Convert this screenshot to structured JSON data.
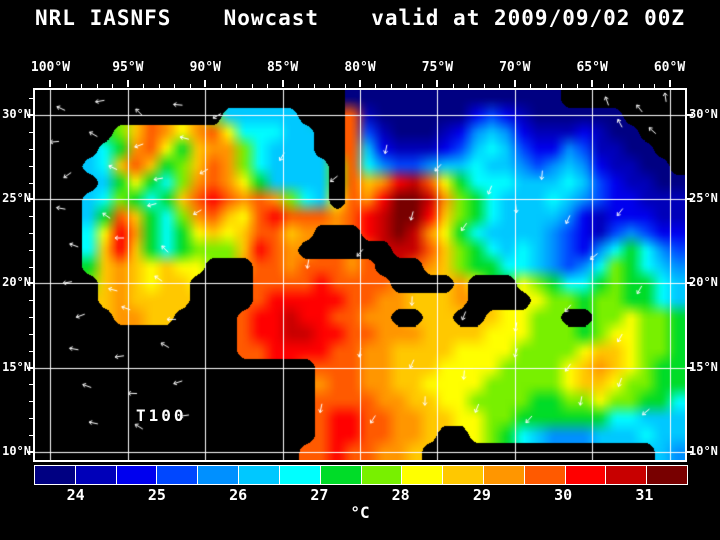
{
  "header": {
    "model": "NRL IASNFS",
    "product": "Nowcast",
    "valid_time": "valid at 2009/09/02 00Z"
  },
  "map": {
    "annotation": "T100",
    "grid_color": "#ffffff",
    "land_color": "#000000",
    "vector_color": "#ffffff",
    "lon_ticks": [
      {
        "lon": -100,
        "label": "100°W"
      },
      {
        "lon": -95,
        "label": "95°W"
      },
      {
        "lon": -90,
        "label": "90°W"
      },
      {
        "lon": -85,
        "label": "85°W"
      },
      {
        "lon": -80,
        "label": "80°W"
      },
      {
        "lon": -75,
        "label": "75°W"
      },
      {
        "lon": -70,
        "label": "70°W"
      },
      {
        "lon": -65,
        "label": "65°W"
      },
      {
        "lon": -60,
        "label": "60°W"
      }
    ],
    "lat_ticks": [
      {
        "lat": 30,
        "label": "30°N"
      },
      {
        "lat": 25,
        "label": "25°N"
      },
      {
        "lat": 20,
        "label": "20°N"
      },
      {
        "lat": 15,
        "label": "15°N"
      },
      {
        "lat": 10,
        "label": "10°N"
      }
    ]
  },
  "colorbar": {
    "min": 23.5,
    "max": 31.5,
    "step": 0.5,
    "unit": "°C",
    "colors": [
      "#000082",
      "#0000b9",
      "#0000ef",
      "#0047ff",
      "#0090ff",
      "#00c8ff",
      "#00ffff",
      "#00dc28",
      "#78f000",
      "#ffff00",
      "#ffc800",
      "#ff9600",
      "#ff5a00",
      "#ff0000",
      "#c80000",
      "#780000"
    ],
    "tick_labels": [
      "24",
      "25",
      "26",
      "27",
      "28",
      "29",
      "30",
      "31"
    ],
    "tick_values": [
      24,
      25,
      26,
      27,
      28,
      29,
      30,
      31
    ]
  },
  "chart_data": {
    "type": "heatmap",
    "title": "NRL IASNFS Nowcast valid at 2009/09/02 00Z",
    "field": "T100",
    "units": "°C",
    "lon_range": [
      -101,
      -59
    ],
    "lat_range": [
      9.5,
      31.5
    ],
    "ncols": 42,
    "nrows": 22,
    "values": [
      [
        null,
        null,
        null,
        null,
        null,
        null,
        null,
        null,
        null,
        null,
        null,
        null,
        null,
        null,
        null,
        null,
        null,
        null,
        null,
        null,
        23.6,
        23.6,
        23.6,
        23.6,
        23.6,
        23.6,
        23.6,
        23.6,
        23.6,
        23.6,
        23.6,
        23.6,
        23.6,
        23.6,
        null,
        null,
        null,
        null,
        null,
        null,
        null,
        null
      ],
      [
        null,
        null,
        null,
        null,
        null,
        null,
        null,
        null,
        null,
        null,
        null,
        null,
        26.3,
        26.3,
        26.3,
        26.3,
        26.3,
        null,
        null,
        null,
        29.6,
        24.3,
        23.8,
        23.8,
        23.8,
        23.8,
        23.8,
        23.8,
        24.8,
        25.3,
        24.8,
        24.2,
        23.9,
        23.9,
        23.9,
        23.9,
        23.9,
        23.9,
        null,
        null,
        null,
        null
      ],
      [
        null,
        null,
        null,
        null,
        null,
        27.5,
        28.5,
        29.5,
        29.0,
        28.0,
        29.0,
        29.5,
        28.0,
        26.5,
        26.5,
        26.5,
        26.3,
        26.0,
        null,
        null,
        29.8,
        25.0,
        24.0,
        23.8,
        23.8,
        23.8,
        24.0,
        24.5,
        25.5,
        26.0,
        25.5,
        24.5,
        24.0,
        24.0,
        24.3,
        24.5,
        24.0,
        23.8,
        23.8,
        null,
        null,
        null
      ],
      [
        null,
        null,
        null,
        null,
        26.5,
        27.0,
        29.3,
        29.8,
        28.0,
        27.0,
        28.5,
        29.3,
        29.0,
        27.5,
        26.5,
        26.3,
        26.3,
        26.0,
        null,
        null,
        29.8,
        26.0,
        24.5,
        24.0,
        24.0,
        24.2,
        24.5,
        25.0,
        26.2,
        26.5,
        26.0,
        25.0,
        24.5,
        24.8,
        25.5,
        25.0,
        24.3,
        24.0,
        23.8,
        23.7,
        null,
        null
      ],
      [
        null,
        null,
        null,
        26.0,
        26.5,
        28.8,
        29.5,
        28.5,
        27.0,
        27.5,
        28.5,
        29.5,
        29.0,
        27.5,
        26.5,
        26.3,
        26.2,
        26.0,
        26.0,
        null,
        29.5,
        26.5,
        25.5,
        25.0,
        25.0,
        25.5,
        26.0,
        26.3,
        26.5,
        26.3,
        26.0,
        25.5,
        25.0,
        25.5,
        26.0,
        25.5,
        24.8,
        24.3,
        24.0,
        23.9,
        23.8,
        null
      ],
      [
        null,
        null,
        null,
        null,
        26.3,
        27.0,
        28.0,
        27.0,
        26.5,
        27.5,
        29.3,
        29.8,
        29.3,
        28.0,
        27.0,
        26.3,
        26.2,
        26.2,
        26.0,
        null,
        29.5,
        28.5,
        29.0,
        30.0,
        30.5,
        29.5,
        28.0,
        27.0,
        26.5,
        26.5,
        26.5,
        26.0,
        26.0,
        26.3,
        26.5,
        26.0,
        25.0,
        24.5,
        24.2,
        24.0,
        23.9,
        23.8
      ],
      [
        null,
        null,
        null,
        26.0,
        26.5,
        27.5,
        27.0,
        26.5,
        27.0,
        28.5,
        29.8,
        30.0,
        29.5,
        29.0,
        29.5,
        29.0,
        27.5,
        26.5,
        26.3,
        null,
        29.5,
        29.0,
        30.3,
        31.0,
        31.2,
        30.5,
        29.0,
        27.5,
        27.0,
        26.5,
        26.3,
        26.0,
        26.3,
        26.5,
        26.3,
        25.5,
        25.0,
        24.5,
        24.5,
        24.3,
        24.0,
        24.0
      ],
      [
        null,
        null,
        null,
        26.3,
        27.0,
        29.5,
        28.5,
        27.0,
        26.8,
        27.5,
        29.0,
        29.5,
        28.5,
        28.0,
        29.5,
        30.0,
        29.5,
        29.8,
        29.5,
        29.0,
        29.5,
        30.0,
        30.8,
        31.3,
        31.0,
        30.0,
        28.5,
        27.5,
        27.0,
        26.5,
        26.0,
        26.0,
        26.2,
        26.0,
        25.5,
        24.5,
        24.3,
        24.5,
        24.8,
        24.5,
        24.3,
        24.2
      ],
      [
        null,
        null,
        null,
        26.5,
        28.0,
        30.3,
        29.0,
        27.0,
        26.8,
        27.0,
        28.0,
        28.5,
        28.0,
        28.5,
        29.8,
        29.5,
        28.5,
        29.0,
        null,
        null,
        null,
        30.0,
        30.5,
        31.0,
        30.5,
        29.0,
        28.0,
        27.0,
        26.5,
        26.3,
        26.0,
        26.2,
        26.0,
        25.5,
        25.0,
        24.5,
        24.3,
        25.0,
        25.5,
        25.0,
        24.8,
        24.5
      ],
      [
        null,
        null,
        null,
        26.5,
        28.5,
        30.0,
        28.5,
        27.0,
        26.8,
        27.0,
        27.5,
        27.5,
        27.8,
        28.5,
        30.0,
        29.8,
        29.0,
        null,
        null,
        null,
        null,
        null,
        null,
        30.5,
        30.8,
        29.5,
        28.5,
        27.5,
        27.0,
        26.5,
        26.3,
        26.5,
        26.3,
        25.5,
        25.0,
        24.8,
        25.5,
        26.5,
        27.0,
        26.5,
        25.5,
        25.0
      ],
      [
        null,
        null,
        null,
        27.0,
        28.5,
        29.0,
        28.5,
        28.3,
        28.5,
        28.0,
        28.0,
        null,
        null,
        null,
        29.8,
        29.5,
        29.3,
        29.5,
        29.8,
        29.5,
        29.3,
        29.5,
        null,
        null,
        null,
        29.0,
        28.5,
        27.5,
        27.3,
        27.0,
        26.5,
        26.5,
        26.0,
        25.5,
        25.3,
        25.5,
        26.5,
        27.5,
        27.0,
        26.5,
        26.0,
        25.5
      ],
      [
        null,
        null,
        null,
        null,
        28.5,
        29.0,
        28.5,
        28.3,
        28.5,
        28.5,
        null,
        null,
        null,
        null,
        29.5,
        29.8,
        29.5,
        29.8,
        30.0,
        29.8,
        29.5,
        29.8,
        29.5,
        null,
        null,
        null,
        null,
        29.0,
        null,
        null,
        null,
        28.0,
        27.5,
        27.0,
        26.5,
        26.5,
        27.0,
        27.5,
        27.3,
        27.0,
        26.5,
        26.0
      ],
      [
        null,
        null,
        null,
        null,
        28.8,
        29.3,
        28.8,
        28.5,
        28.5,
        28.5,
        null,
        null,
        null,
        null,
        29.8,
        30.0,
        30.0,
        30.3,
        30.0,
        30.0,
        29.8,
        29.5,
        29.3,
        29.0,
        28.5,
        28.5,
        28.8,
        29.0,
        null,
        null,
        null,
        null,
        28.0,
        27.5,
        27.5,
        27.3,
        27.5,
        27.5,
        27.3,
        27.0,
        26.5,
        26.3
      ],
      [
        null,
        null,
        null,
        null,
        null,
        29.0,
        29.0,
        28.8,
        28.8,
        null,
        null,
        null,
        null,
        29.8,
        30.0,
        30.3,
        30.5,
        30.3,
        30.0,
        29.8,
        29.5,
        29.3,
        29.0,
        null,
        null,
        28.8,
        28.5,
        null,
        null,
        28.5,
        28.3,
        28.0,
        27.8,
        27.5,
        null,
        null,
        27.5,
        27.8,
        28.0,
        27.8,
        27.5,
        27.3
      ],
      [
        null,
        null,
        null,
        null,
        null,
        null,
        null,
        null,
        null,
        null,
        null,
        null,
        null,
        29.8,
        30.0,
        30.3,
        30.5,
        30.5,
        30.3,
        30.0,
        29.8,
        29.5,
        29.3,
        29.0,
        29.0,
        28.8,
        28.5,
        28.5,
        28.5,
        28.3,
        28.0,
        28.0,
        27.8,
        27.5,
        27.5,
        27.3,
        27.5,
        28.0,
        28.0,
        27.8,
        27.5,
        27.3
      ],
      [
        null,
        null,
        null,
        null,
        null,
        null,
        null,
        null,
        null,
        null,
        null,
        null,
        null,
        29.5,
        29.8,
        30.0,
        30.3,
        30.3,
        30.0,
        29.8,
        29.5,
        29.3,
        29.0,
        28.8,
        28.8,
        28.5,
        28.5,
        28.3,
        28.3,
        28.0,
        28.0,
        27.8,
        27.5,
        27.5,
        27.8,
        28.3,
        28.5,
        28.8,
        28.3,
        27.8,
        27.5,
        27.3
      ],
      [
        null,
        null,
        null,
        null,
        null,
        null,
        null,
        null,
        null,
        null,
        null,
        null,
        null,
        null,
        null,
        null,
        null,
        null,
        29.5,
        29.8,
        29.5,
        29.3,
        29.0,
        28.8,
        28.5,
        28.5,
        28.3,
        28.3,
        28.0,
        28.0,
        27.8,
        27.8,
        27.5,
        27.5,
        28.0,
        28.5,
        29.0,
        28.5,
        28.0,
        27.5,
        27.3,
        27.0
      ],
      [
        null,
        null,
        null,
        null,
        null,
        null,
        null,
        null,
        null,
        null,
        null,
        null,
        null,
        null,
        null,
        null,
        null,
        null,
        29.3,
        29.5,
        29.5,
        29.3,
        29.0,
        28.8,
        28.5,
        28.3,
        28.3,
        28.0,
        28.0,
        27.8,
        27.8,
        27.5,
        27.5,
        27.8,
        28.3,
        28.8,
        28.5,
        28.0,
        27.8,
        27.5,
        27.3,
        27.0
      ],
      [
        null,
        null,
        null,
        null,
        null,
        null,
        null,
        null,
        null,
        null,
        null,
        null,
        null,
        null,
        null,
        null,
        null,
        null,
        29.5,
        29.8,
        29.8,
        29.5,
        29.3,
        29.0,
        28.8,
        28.5,
        28.3,
        28.0,
        27.8,
        27.8,
        27.5,
        27.5,
        27.3,
        27.3,
        27.5,
        27.8,
        28.0,
        27.8,
        27.5,
        27.3,
        27.0,
        26.8
      ],
      [
        null,
        null,
        null,
        null,
        null,
        null,
        null,
        null,
        null,
        null,
        null,
        null,
        null,
        null,
        null,
        null,
        null,
        null,
        29.8,
        30.0,
        30.0,
        29.8,
        29.5,
        29.3,
        29.0,
        28.8,
        28.5,
        28.3,
        28.0,
        27.8,
        27.5,
        27.3,
        27.0,
        27.0,
        27.0,
        27.3,
        27.0,
        26.8,
        26.5,
        26.3,
        26.0,
        26.0
      ],
      [
        null,
        null,
        null,
        null,
        null,
        null,
        null,
        null,
        null,
        null,
        null,
        null,
        null,
        null,
        null,
        null,
        null,
        null,
        29.8,
        30.0,
        30.0,
        29.8,
        29.5,
        29.3,
        29.0,
        28.8,
        null,
        null,
        28.0,
        27.5,
        27.0,
        26.5,
        26.0,
        25.8,
        25.5,
        25.8,
        26.0,
        26.0,
        26.3,
        26.5,
        26.3,
        26.0
      ],
      [
        null,
        null,
        null,
        null,
        null,
        null,
        null,
        null,
        null,
        null,
        null,
        null,
        null,
        null,
        null,
        null,
        null,
        29.5,
        29.8,
        30.0,
        29.8,
        29.5,
        29.3,
        29.0,
        28.8,
        null,
        null,
        null,
        null,
        null,
        null,
        null,
        null,
        null,
        null,
        null,
        null,
        null,
        null,
        null,
        26.0,
        25.8
      ]
    ],
    "vectors_pct": [
      [
        4,
        5,
        205
      ],
      [
        10,
        3,
        170
      ],
      [
        16,
        6,
        225
      ],
      [
        22,
        4,
        185
      ],
      [
        28,
        7,
        150
      ],
      [
        3,
        14,
        175
      ],
      [
        9,
        12,
        210
      ],
      [
        16,
        15,
        160
      ],
      [
        23,
        13,
        195
      ],
      [
        5,
        23,
        145
      ],
      [
        12,
        21,
        205
      ],
      [
        19,
        24,
        170
      ],
      [
        26,
        22,
        150
      ],
      [
        4,
        32,
        190
      ],
      [
        11,
        34,
        215
      ],
      [
        18,
        31,
        165
      ],
      [
        25,
        33,
        150
      ],
      [
        6,
        42,
        200
      ],
      [
        13,
        40,
        180
      ],
      [
        20,
        43,
        225
      ],
      [
        5,
        52,
        170
      ],
      [
        12,
        54,
        195
      ],
      [
        19,
        51,
        215
      ],
      [
        7,
        61,
        160
      ],
      [
        14,
        59,
        200
      ],
      [
        21,
        62,
        180
      ],
      [
        6,
        70,
        190
      ],
      [
        13,
        72,
        172
      ],
      [
        20,
        69,
        210
      ],
      [
        8,
        80,
        200
      ],
      [
        15,
        82,
        182
      ],
      [
        22,
        79,
        162
      ],
      [
        9,
        90,
        192
      ],
      [
        16,
        91,
        212
      ],
      [
        23,
        88,
        172
      ],
      [
        88,
        3,
        250
      ],
      [
        93,
        5,
        232
      ],
      [
        97,
        2,
        262
      ],
      [
        90,
        9,
        242
      ],
      [
        95,
        11,
        222
      ],
      [
        38,
        18,
        120
      ],
      [
        46,
        24,
        142
      ],
      [
        54,
        16,
        102
      ],
      [
        62,
        21,
        132
      ],
      [
        70,
        27,
        112
      ],
      [
        78,
        23,
        95
      ],
      [
        58,
        34,
        105
      ],
      [
        66,
        37,
        125
      ],
      [
        74,
        32,
        85
      ],
      [
        82,
        35,
        115
      ],
      [
        90,
        33,
        128
      ],
      [
        42,
        47,
        100
      ],
      [
        50,
        44,
        130
      ],
      [
        86,
        45,
        140
      ],
      [
        93,
        54,
        120
      ],
      [
        58,
        57,
        92
      ],
      [
        66,
        61,
        112
      ],
      [
        74,
        64,
        100
      ],
      [
        82,
        59,
        130
      ],
      [
        90,
        67,
        120
      ],
      [
        50,
        71,
        100
      ],
      [
        58,
        74,
        115
      ],
      [
        66,
        77,
        95
      ],
      [
        74,
        71,
        105
      ],
      [
        82,
        75,
        125
      ],
      [
        90,
        79,
        110
      ],
      [
        44,
        86,
        102
      ],
      [
        52,
        89,
        122
      ],
      [
        60,
        84,
        92
      ],
      [
        68,
        86,
        112
      ],
      [
        76,
        89,
        132
      ],
      [
        84,
        84,
        100
      ],
      [
        94,
        87,
        140
      ]
    ]
  }
}
